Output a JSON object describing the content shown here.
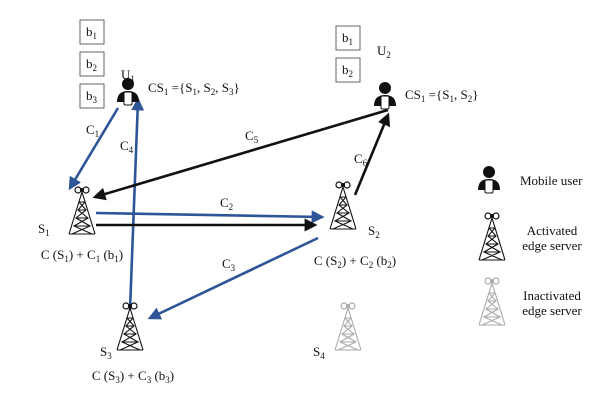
{
  "colors": {
    "blue": "#2e5597",
    "black": "#111111",
    "inactive": "#aaaaaa"
  },
  "users": [
    {
      "label": "U1",
      "cs": "CS1 ={S1, S2, S3}",
      "buffers": [
        "b1",
        "b2",
        "b3"
      ]
    },
    {
      "label": "U2",
      "cs": "CS1 ={S1, S2}",
      "buffers": [
        "b1",
        "b2"
      ]
    }
  ],
  "servers": [
    {
      "label": "S1",
      "cost": "C (S1) + C1 (b1)",
      "active": true
    },
    {
      "label": "S2",
      "cost": "C (S2) + C2 (b2)",
      "active": true
    },
    {
      "label": "S3",
      "cost": "C (S3) + C3 (b3)",
      "active": true
    },
    {
      "label": "S4",
      "cost": "",
      "active": false
    }
  ],
  "edges": [
    {
      "label": "C1",
      "color": "blue"
    },
    {
      "label": "C4",
      "color": "blue"
    },
    {
      "label": "C5",
      "color": "black"
    },
    {
      "label": "C2",
      "color": "blue"
    },
    {
      "label": "",
      "color": "black"
    },
    {
      "label": "C3",
      "color": "blue"
    },
    {
      "label": "C6",
      "color": "black"
    }
  ],
  "legend": {
    "user": "Mobile user",
    "active": [
      "Activated",
      "edge server"
    ],
    "inactive": [
      "Inactivated",
      "edge server"
    ]
  }
}
